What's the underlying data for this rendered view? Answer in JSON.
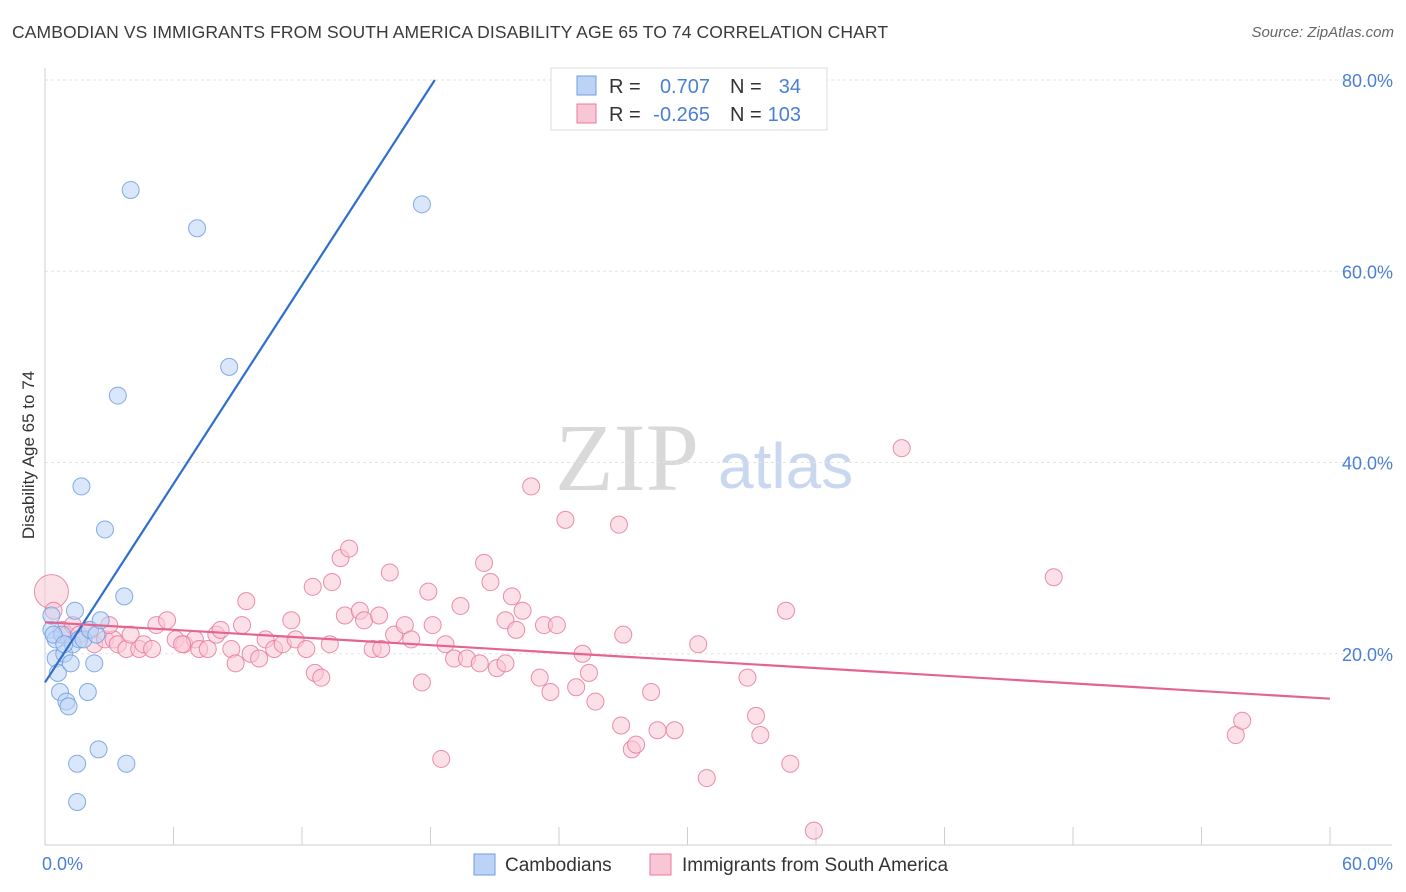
{
  "header": {
    "title": "CAMBODIAN VS IMMIGRANTS FROM SOUTH AMERICA DISABILITY AGE 65 TO 74 CORRELATION CHART",
    "source": "Source: ZipAtlas.com"
  },
  "watermark": {
    "zip": "ZIP",
    "atlas": "atlas"
  },
  "stats_legend": {
    "rows": [
      {
        "r_label": "R =",
        "r_value": "0.707",
        "n_label": "N =",
        "n_value": "34",
        "color": "#6f9de0",
        "fill": "#bcd3f5"
      },
      {
        "r_label": "R =",
        "r_value": "-0.265",
        "n_label": "N =",
        "n_value": "103",
        "color": "#e8799c",
        "fill": "#f9c6d6"
      }
    ]
  },
  "bottom_legend": {
    "items": [
      {
        "label": "Cambodians",
        "color": "#6f9de0",
        "fill": "#bcd3f5"
      },
      {
        "label": "Immigrants from South America",
        "color": "#e8799c",
        "fill": "#f9c6d6"
      }
    ]
  },
  "chart_data": {
    "type": "scatter",
    "title": "CAMBODIAN VS IMMIGRANTS FROM SOUTH AMERICA DISABILITY AGE 65 TO 74 CORRELATION CHART",
    "xlabel": "",
    "ylabel": "Disability Age 65 to 74",
    "xlim": [
      0,
      60
    ],
    "ylim": [
      0,
      80
    ],
    "x_tick_labels": [
      "0.0%",
      "60.0%"
    ],
    "y_tick_labels": [
      "20.0%",
      "40.0%",
      "60.0%",
      "80.0%"
    ],
    "y_ticks": [
      20,
      40,
      60,
      80
    ],
    "grid": true,
    "legend_position": "top-center",
    "series": [
      {
        "name": "Cambodians",
        "color": "#6f9de0",
        "fill": "#bcd3f5",
        "trend": {
          "x": [
            0,
            18.2
          ],
          "y": [
            17,
            80
          ]
        },
        "points": [
          [
            0.3,
            22.5
          ],
          [
            0.3,
            24.0
          ],
          [
            0.5,
            21.5
          ],
          [
            0.5,
            19.5
          ],
          [
            0.6,
            18.0
          ],
          [
            0.7,
            16.0
          ],
          [
            0.8,
            22.0
          ],
          [
            0.9,
            20.0
          ],
          [
            1.0,
            15.0
          ],
          [
            1.1,
            14.5
          ],
          [
            1.2,
            19.0
          ],
          [
            1.3,
            21.0
          ],
          [
            1.4,
            24.5
          ],
          [
            1.5,
            8.5
          ],
          [
            1.5,
            4.5
          ],
          [
            1.6,
            21.5
          ],
          [
            1.7,
            37.5
          ],
          [
            1.8,
            21.5
          ],
          [
            2.0,
            16.0
          ],
          [
            2.1,
            22.5
          ],
          [
            2.3,
            19.0
          ],
          [
            2.4,
            22.0
          ],
          [
            2.5,
            10.0
          ],
          [
            2.6,
            23.5
          ],
          [
            2.8,
            33.0
          ],
          [
            3.4,
            47.0
          ],
          [
            3.7,
            26.0
          ],
          [
            3.8,
            8.5
          ],
          [
            4.0,
            68.5
          ],
          [
            7.1,
            64.5
          ],
          [
            8.6,
            50.0
          ],
          [
            17.6,
            67.0
          ],
          [
            0.4,
            22.0
          ],
          [
            0.9,
            21.0
          ]
        ]
      },
      {
        "name": "Immigrants from South America",
        "color": "#e8799c",
        "fill": "#f9c6d6",
        "trend": {
          "x": [
            0,
            60
          ],
          "y": [
            23.3,
            15.3
          ]
        },
        "points": [
          [
            0.3,
            26.5
          ],
          [
            0.4,
            24.5
          ],
          [
            0.8,
            22.5
          ],
          [
            1.0,
            22.0
          ],
          [
            1.3,
            23.0
          ],
          [
            1.6,
            22.0
          ],
          [
            2.1,
            22.5
          ],
          [
            2.3,
            21.0
          ],
          [
            2.8,
            21.5
          ],
          [
            3.2,
            21.5
          ],
          [
            3.4,
            21.0
          ],
          [
            3.8,
            20.5
          ],
          [
            4.0,
            22.0
          ],
          [
            4.4,
            20.5
          ],
          [
            4.6,
            21.0
          ],
          [
            5.0,
            20.5
          ],
          [
            5.2,
            23.0
          ],
          [
            5.7,
            23.5
          ],
          [
            6.1,
            21.5
          ],
          [
            6.5,
            21.0
          ],
          [
            7.0,
            21.5
          ],
          [
            7.2,
            20.5
          ],
          [
            7.6,
            20.5
          ],
          [
            8.0,
            22.0
          ],
          [
            8.2,
            22.5
          ],
          [
            8.7,
            20.5
          ],
          [
            9.2,
            23.0
          ],
          [
            9.4,
            25.5
          ],
          [
            9.6,
            20.0
          ],
          [
            10.0,
            19.5
          ],
          [
            10.3,
            21.5
          ],
          [
            10.7,
            20.5
          ],
          [
            11.1,
            21.0
          ],
          [
            11.5,
            23.5
          ],
          [
            11.7,
            21.5
          ],
          [
            12.2,
            20.5
          ],
          [
            12.5,
            27.0
          ],
          [
            12.6,
            18.0
          ],
          [
            12.9,
            17.5
          ],
          [
            13.3,
            21.0
          ],
          [
            13.4,
            27.5
          ],
          [
            13.8,
            30.0
          ],
          [
            14.0,
            24.0
          ],
          [
            14.2,
            31.0
          ],
          [
            14.7,
            24.5
          ],
          [
            14.9,
            23.5
          ],
          [
            15.3,
            20.5
          ],
          [
            15.7,
            20.5
          ],
          [
            16.1,
            28.5
          ],
          [
            16.3,
            22.0
          ],
          [
            16.8,
            23.0
          ],
          [
            17.1,
            21.5
          ],
          [
            17.6,
            17.0
          ],
          [
            17.9,
            26.5
          ],
          [
            18.1,
            23.0
          ],
          [
            18.5,
            9.0
          ],
          [
            18.7,
            21.0
          ],
          [
            19.1,
            19.5
          ],
          [
            19.4,
            25.0
          ],
          [
            19.7,
            19.5
          ],
          [
            20.3,
            19.0
          ],
          [
            20.5,
            29.5
          ],
          [
            20.8,
            27.5
          ],
          [
            21.1,
            18.5
          ],
          [
            21.5,
            23.5
          ],
          [
            21.8,
            26.0
          ],
          [
            22.0,
            22.5
          ],
          [
            22.3,
            24.5
          ],
          [
            22.7,
            37.5
          ],
          [
            23.1,
            17.5
          ],
          [
            23.3,
            23.0
          ],
          [
            23.6,
            16.0
          ],
          [
            23.9,
            23.0
          ],
          [
            24.3,
            34.0
          ],
          [
            24.8,
            16.5
          ],
          [
            25.1,
            20.0
          ],
          [
            25.4,
            18.0
          ],
          [
            25.7,
            15.0
          ],
          [
            26.8,
            33.5
          ],
          [
            26.9,
            12.5
          ],
          [
            27.4,
            10.0
          ],
          [
            27.6,
            10.5
          ],
          [
            28.3,
            16.0
          ],
          [
            28.6,
            12.0
          ],
          [
            29.4,
            12.0
          ],
          [
            30.5,
            21.0
          ],
          [
            30.9,
            7.0
          ],
          [
            32.8,
            17.5
          ],
          [
            33.2,
            13.5
          ],
          [
            33.4,
            11.5
          ],
          [
            34.6,
            24.5
          ],
          [
            34.8,
            8.5
          ],
          [
            35.9,
            1.5
          ],
          [
            40.0,
            41.5
          ],
          [
            47.1,
            28.0
          ],
          [
            55.6,
            11.5
          ],
          [
            55.9,
            13.0
          ],
          [
            6.4,
            21.0
          ],
          [
            8.9,
            19.0
          ],
          [
            15.6,
            24.0
          ],
          [
            21.5,
            19.0
          ],
          [
            27.0,
            22.0
          ],
          [
            3.0,
            23.0
          ]
        ]
      }
    ]
  }
}
